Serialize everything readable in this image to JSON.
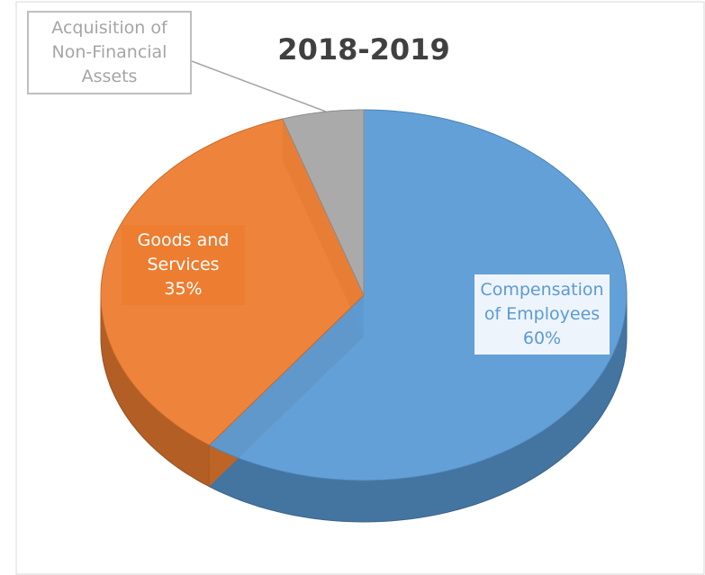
{
  "chart_data": {
    "type": "pie",
    "title": "2018-2019",
    "categories": [
      "Compensation of Employees",
      "Goods and Services",
      "Acquisition of Non-Financial Assets"
    ],
    "values": [
      60,
      35,
      5
    ],
    "value_labels": [
      "60%",
      "35%",
      null
    ],
    "colors": [
      "#5b9bd5",
      "#ed7d31",
      "#a5a5a5"
    ]
  }
}
